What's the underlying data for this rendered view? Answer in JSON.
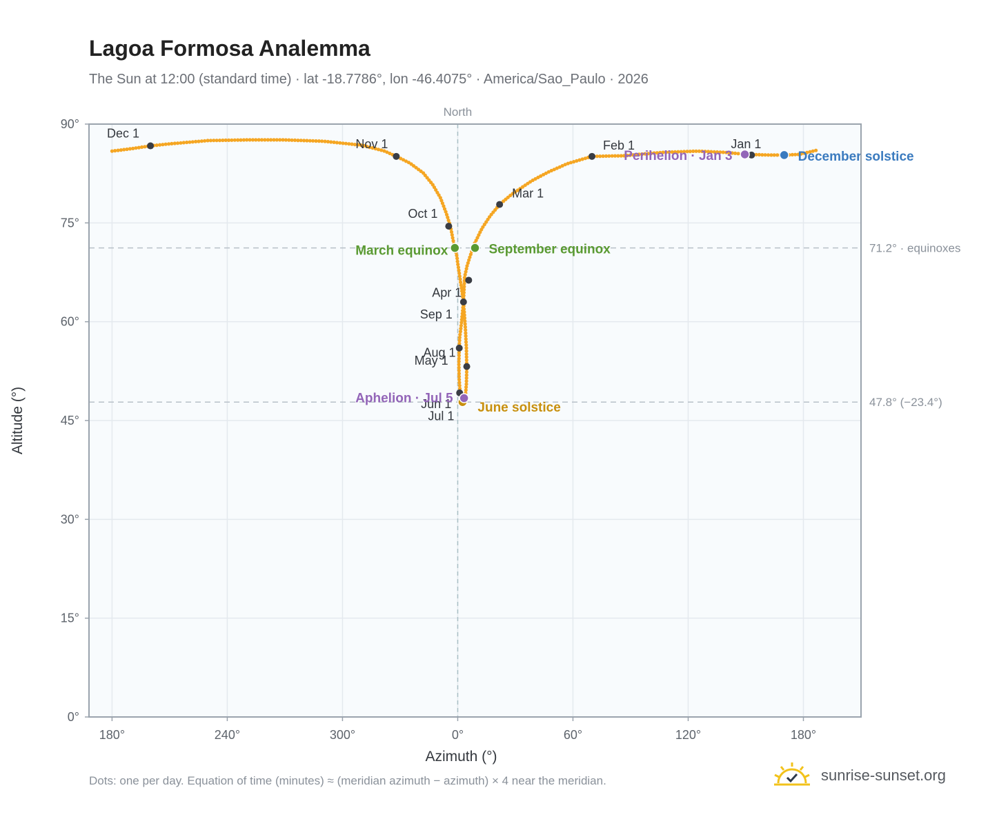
{
  "header": {
    "title": "Lagoa Formosa Analemma",
    "subtitle": "The Sun at 12:00 (standard time) · lat -18.7786°, lon -46.4075° · America/Sao_Paulo · 2026"
  },
  "footer": {
    "note": "Dots: one per day. Equation of time (minutes) ≈ (meridian azimuth − azimuth) × 4 near the meridian.",
    "brand": "sunrise-sunset.org"
  },
  "colors": {
    "curve": "#f5a623",
    "month_dot": "#3a3d44",
    "equinox": "#5a9a32",
    "june_solstice": "#c8900e",
    "december_solstice": "#3b7bbf",
    "apsis": "#9365b8",
    "plot_bg": "#f8fbfd",
    "grid": "#e4e9ee",
    "frame": "#9aa3ad"
  },
  "chart_data": {
    "type": "scatter",
    "title": "Lagoa Formosa Analemma",
    "xlabel": "Azimuth (°)",
    "ylabel": "Altitude (°)",
    "north_label": "North",
    "x_ticks": [
      "180°",
      "240°",
      "300°",
      "0°",
      "60°",
      "120°",
      "180°"
    ],
    "x_tick_values": [
      -180,
      -120,
      -60,
      0,
      60,
      120,
      180
    ],
    "y_ticks": [
      "0°",
      "15°",
      "30°",
      "45°",
      "60°",
      "75°",
      "90°"
    ],
    "y_tick_values": [
      0,
      15,
      30,
      45,
      60,
      75,
      90
    ],
    "xlim": [
      -192,
      210
    ],
    "ylim": [
      0,
      90
    ],
    "grid": true,
    "reference_lines": [
      {
        "altitude": 71.2,
        "label": "71.2° · equinoxes"
      },
      {
        "altitude": 47.8,
        "label": "47.8° (−23.4°)"
      }
    ],
    "series": [
      {
        "points": [
          [
            186.5,
            86.0
          ],
          [
            177.6,
            85.4
          ],
          [
            171.0,
            85.3
          ],
          [
            165.5,
            85.3
          ],
          [
            163.0,
            85.3
          ],
          [
            150.7,
            85.4
          ],
          [
            139.4,
            85.7
          ],
          [
            125.0,
            85.9
          ],
          [
            106.3,
            85.7
          ],
          [
            94.1,
            85.4
          ],
          [
            86.9,
            85.2
          ],
          [
            69.9,
            85.1
          ],
          [
            57.1,
            84.0
          ],
          [
            47.0,
            82.7
          ],
          [
            38.6,
            81.4
          ],
          [
            27.9,
            79.3
          ],
          [
            21.8,
            77.8
          ],
          [
            17.0,
            76.1
          ],
          [
            12.7,
            74.2
          ],
          [
            8.8,
            71.9
          ],
          [
            6.5,
            70.0
          ],
          [
            4.9,
            68.5
          ],
          [
            3.6,
            66.8
          ],
          [
            3.0,
            63.0
          ],
          [
            2.0,
            60.0
          ],
          [
            1.0,
            57.5
          ],
          [
            0.8,
            56.0
          ],
          [
            0.6,
            53.5
          ],
          [
            0.8,
            51.0
          ],
          [
            1.2,
            49.5
          ],
          [
            1.5,
            49.0
          ],
          [
            2.0,
            48.3
          ],
          [
            2.5,
            47.8
          ],
          [
            3.0,
            47.8
          ],
          [
            3.5,
            48.2
          ],
          [
            4.0,
            48.8
          ],
          [
            4.5,
            50.5
          ],
          [
            4.7,
            53.0
          ],
          [
            4.5,
            56.0
          ],
          [
            4.0,
            59.0
          ],
          [
            3.0,
            63.0
          ],
          [
            1.5,
            66.0
          ],
          [
            0.2,
            68.5
          ],
          [
            -0.5,
            70.0
          ],
          [
            -1.5,
            71.2
          ],
          [
            -2.5,
            72.5
          ],
          [
            -3.8,
            74.5
          ],
          [
            -6.0,
            76.5
          ],
          [
            -9.0,
            78.8
          ],
          [
            -13.0,
            80.8
          ],
          [
            -18.0,
            82.6
          ],
          [
            -25.0,
            84.1
          ],
          [
            -32.0,
            85.1
          ],
          [
            -38.0,
            85.9
          ],
          [
            -50.0,
            86.8
          ],
          [
            -70.0,
            87.4
          ],
          [
            -90.0,
            87.6
          ],
          [
            -110.0,
            87.6
          ],
          [
            -130.0,
            87.5
          ],
          [
            -150.0,
            87.0
          ],
          [
            -160.0,
            86.7
          ],
          [
            -169.0,
            86.3
          ],
          [
            -180.0,
            85.9
          ]
        ]
      }
    ],
    "month_markers": [
      {
        "label": "Jan 1",
        "az": 153.0,
        "alt": 85.3
      },
      {
        "label": "Feb 1",
        "az": 69.9,
        "alt": 85.1
      },
      {
        "label": "Mar 1",
        "az": 21.8,
        "alt": 77.8
      },
      {
        "label": "Apr 1",
        "az": 5.7,
        "alt": 66.3
      },
      {
        "label": "May 1",
        "az": 0.8,
        "alt": 56.0
      },
      {
        "label": "Jun 1",
        "az": 1.0,
        "alt": 49.2
      },
      {
        "label": "Jul 1",
        "az": 2.5,
        "alt": 48.0
      },
      {
        "label": "Aug 1",
        "az": 4.7,
        "alt": 53.2
      },
      {
        "label": "Sep 1",
        "az": 3.0,
        "alt": 63.0
      },
      {
        "label": "Oct 1",
        "az": -4.7,
        "alt": 74.5
      },
      {
        "label": "Nov 1",
        "az": -32.0,
        "alt": 85.1
      },
      {
        "label": "Dec 1",
        "az": -160.0,
        "alt": 86.7
      }
    ],
    "events": [
      {
        "label": "March equinox",
        "az": -1.5,
        "alt": 71.2,
        "color": "#5a9a32"
      },
      {
        "label": "September equinox",
        "az": 9.0,
        "alt": 71.2,
        "color": "#5a9a32"
      },
      {
        "label": "June solstice",
        "az": 2.5,
        "alt": 47.8,
        "color": "#c8900e"
      },
      {
        "label": "December solstice",
        "az": 170.0,
        "alt": 85.3,
        "color": "#3b7bbf"
      },
      {
        "label": "Perihelion · Jan 3",
        "az": 149.5,
        "alt": 85.4,
        "color": "#9365b8"
      },
      {
        "label": "Aphelion · Jul 5",
        "az": 3.3,
        "alt": 48.4,
        "color": "#9365b8"
      }
    ]
  }
}
